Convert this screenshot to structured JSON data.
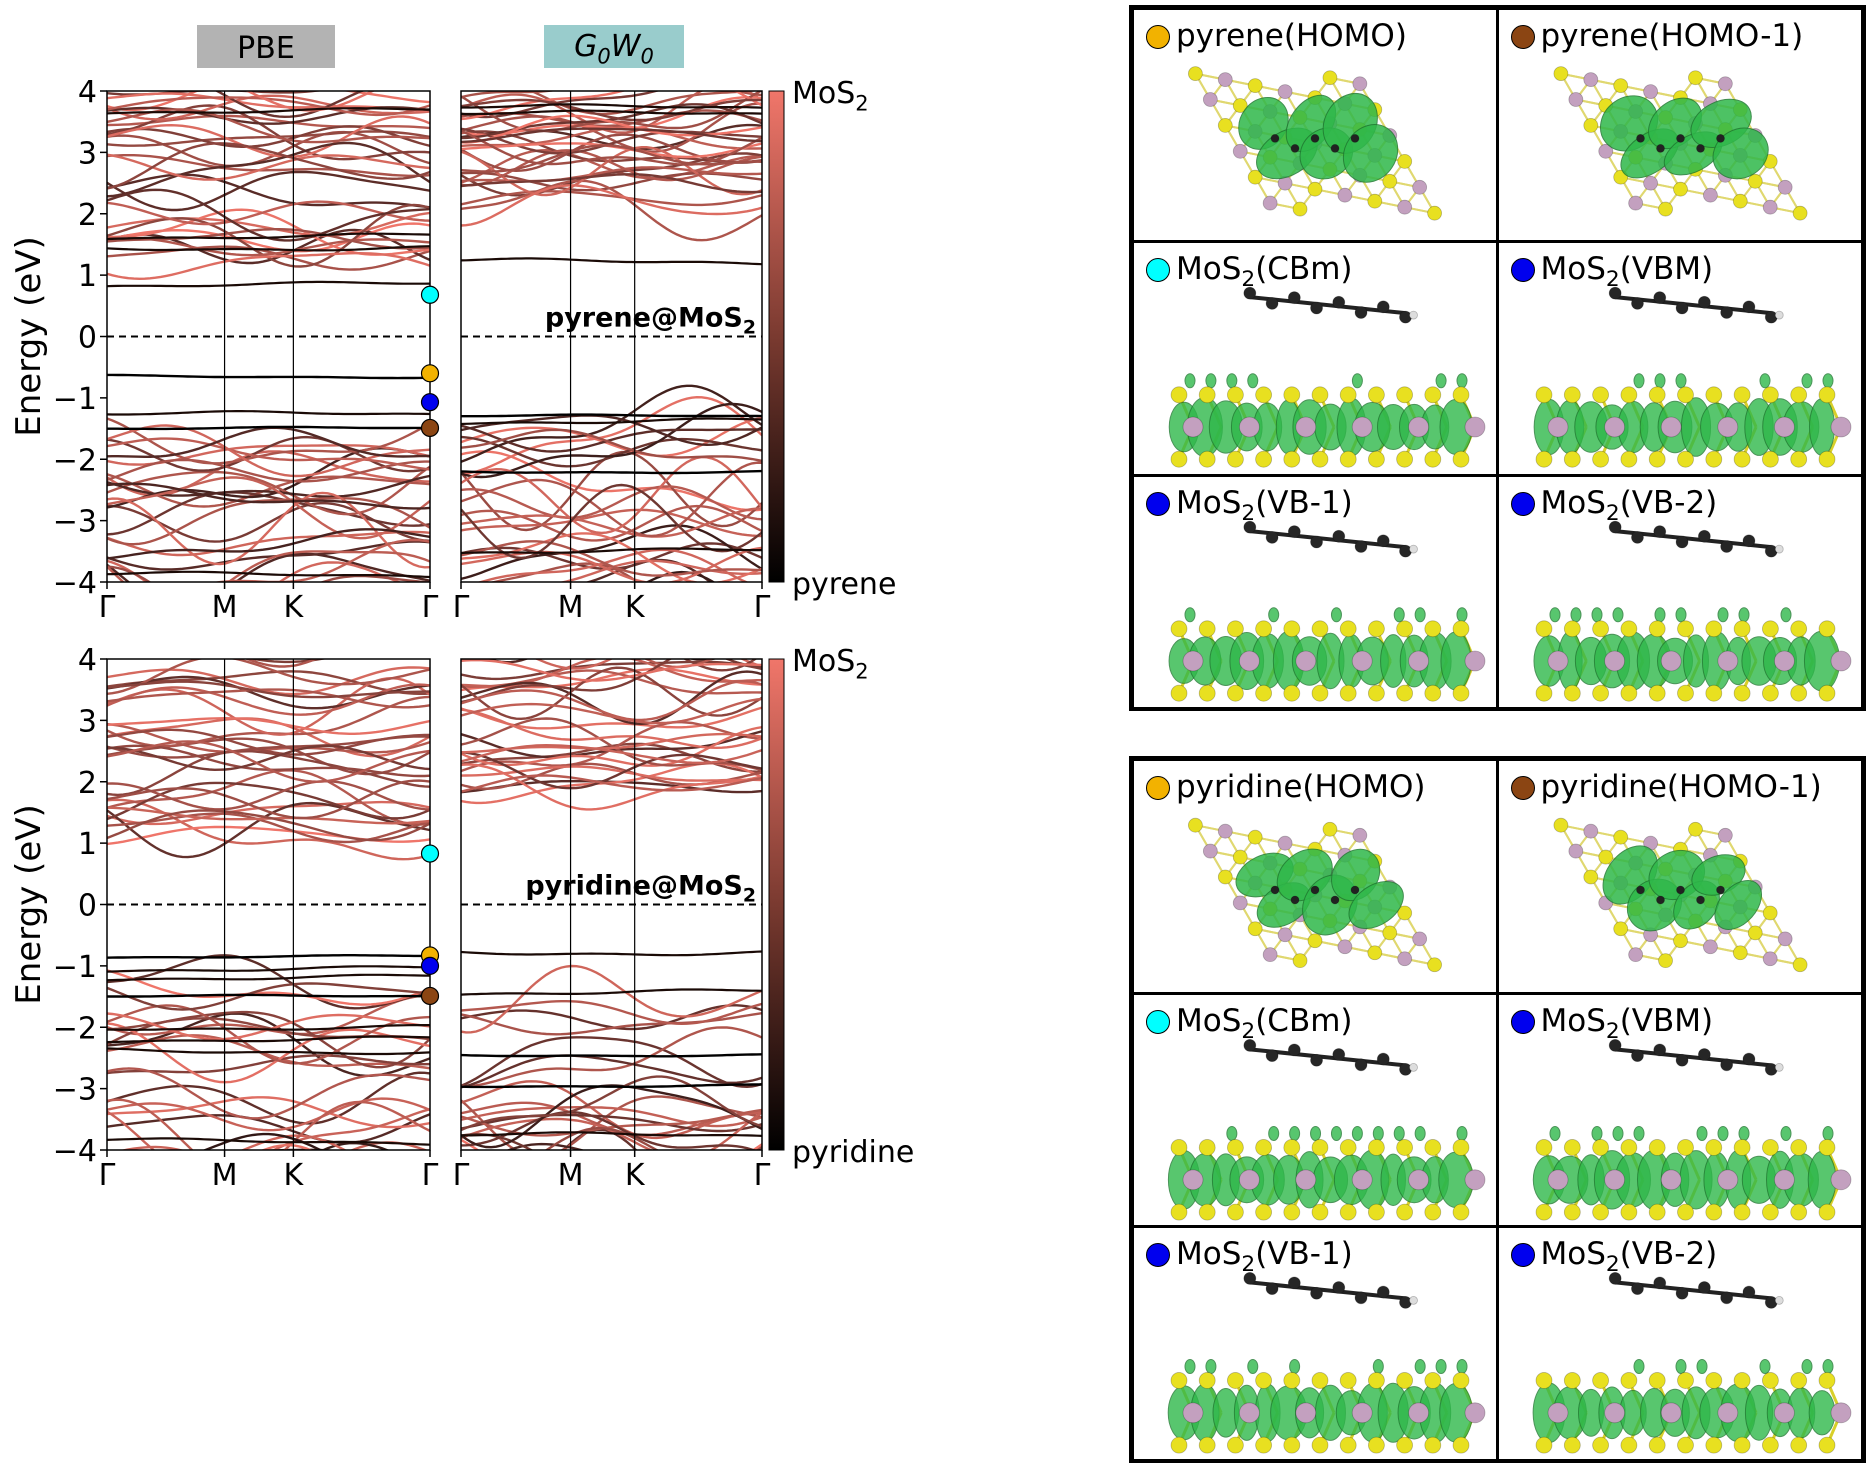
{
  "headers": {
    "pbe": "PBE",
    "gw": "G0W0",
    "pbe_color": "#b3b3b3",
    "gw_color": "#99cccc"
  },
  "colors": {
    "mos2": "#f0766a",
    "pyrene": "#000000",
    "cbm_dot": "#00ffff",
    "homo_dot": "#f2b200",
    "vbm_dot": "#0000ee",
    "homo1_dot": "#8b4513",
    "sulfur": "#e8e020",
    "molybdenum": "#c3a0bf",
    "isosurface": "#2fb84a"
  },
  "chart_data": [
    {
      "type": "line",
      "method": "PBE",
      "system": "pyrene@MoS2",
      "ylabel": "Energy (eV)",
      "ylim": [
        -4,
        4
      ],
      "yticks": [
        "−4",
        "−3",
        "−2",
        "−1",
        "0",
        "1",
        "2",
        "3",
        "4"
      ],
      "kpath": [
        "Γ",
        "M",
        "K",
        "Γ"
      ],
      "colorbar": {
        "top": "MoS2",
        "bottom": "pyrene"
      },
      "fermi_level": 0,
      "molecular_levels": [
        -0.65,
        -1.5
      ],
      "mos2_valence_top": -1.1,
      "mos2_conduction_min": 0.68,
      "gamma_markers": [
        {
          "label": "MoS2(CBm)",
          "energy": 0.68,
          "color": "cbm_dot"
        },
        {
          "label": "pyrene(HOMO)",
          "energy": -0.6,
          "color": "homo_dot"
        },
        {
          "label": "MoS2(VBM)",
          "energy": -1.07,
          "color": "vbm_dot"
        },
        {
          "label": "pyrene(HOMO-1)",
          "energy": -1.49,
          "color": "homo1_dot"
        }
      ]
    },
    {
      "type": "line",
      "method": "G0W0",
      "system": "pyrene@MoS2",
      "ylim": [
        -4,
        4
      ],
      "kpath": [
        "Γ",
        "M",
        "K",
        "Γ"
      ],
      "annotation": "pyrene@MoS2",
      "fermi_level": 0,
      "molecular_levels": [
        -1.3,
        -2.2
      ],
      "mos2_valence_top": -1.15,
      "mos2_conduction_min": 1.75
    },
    {
      "type": "line",
      "method": "PBE",
      "system": "pyridine@MoS2",
      "ylabel": "Energy (eV)",
      "ylim": [
        -4,
        4
      ],
      "yticks": [
        "−4",
        "−3",
        "−2",
        "−1",
        "0",
        "1",
        "2",
        "3",
        "4"
      ],
      "kpath": [
        "Γ",
        "M",
        "K",
        "Γ"
      ],
      "colorbar": {
        "top": "MoS2",
        "bottom": "pyridine"
      },
      "fermi_level": 0,
      "molecular_levels": [
        -0.85,
        -1.5
      ],
      "mos2_valence_top": -0.9,
      "mos2_conduction_min": 0.85,
      "gamma_markers": [
        {
          "label": "MoS2(CBm)",
          "energy": 0.83,
          "color": "cbm_dot"
        },
        {
          "label": "pyridine(HOMO)",
          "energy": -0.83,
          "color": "homo_dot"
        },
        {
          "label": "MoS2(VBM)",
          "energy": -1.0,
          "color": "vbm_dot"
        },
        {
          "label": "pyridine(HOMO-1)",
          "energy": -1.49,
          "color": "homo1_dot"
        }
      ]
    },
    {
      "type": "line",
      "method": "G0W0",
      "system": "pyridine@MoS2",
      "ylim": [
        -4,
        4
      ],
      "kpath": [
        "Γ",
        "M",
        "K",
        "Γ"
      ],
      "annotation": "pyridine@MoS2",
      "fermi_level": 0,
      "molecular_levels": [
        -2.45,
        -2.95
      ],
      "mos2_valence_top": -0.95,
      "mos2_conduction_min": 1.4
    }
  ],
  "orbital_panels": {
    "pyrene": [
      {
        "label": "pyrene(HOMO)",
        "dot": "homo_dot",
        "view": "top"
      },
      {
        "label": "pyrene(HOMO-1)",
        "dot": "homo1_dot",
        "view": "top"
      },
      {
        "label": "MoS2(CBm)",
        "dot": "cbm_dot",
        "view": "side"
      },
      {
        "label": "MoS2(VBM)",
        "dot": "vbm_dot",
        "view": "side"
      },
      {
        "label": "MoS2(VB-1)",
        "dot": "vbm_dot",
        "view": "side"
      },
      {
        "label": "MoS2(VB-2)",
        "dot": "vbm_dot",
        "view": "side"
      }
    ],
    "pyridine": [
      {
        "label": "pyridine(HOMO)",
        "dot": "homo_dot",
        "view": "top"
      },
      {
        "label": "pyridine(HOMO-1)",
        "dot": "homo1_dot",
        "view": "top"
      },
      {
        "label": "MoS2(CBm)",
        "dot": "cbm_dot",
        "view": "side"
      },
      {
        "label": "MoS2(VBM)",
        "dot": "vbm_dot",
        "view": "side"
      },
      {
        "label": "MoS2(VB-1)",
        "dot": "vbm_dot",
        "view": "side"
      },
      {
        "label": "MoS2(VB-2)",
        "dot": "vbm_dot",
        "view": "side"
      }
    ]
  }
}
